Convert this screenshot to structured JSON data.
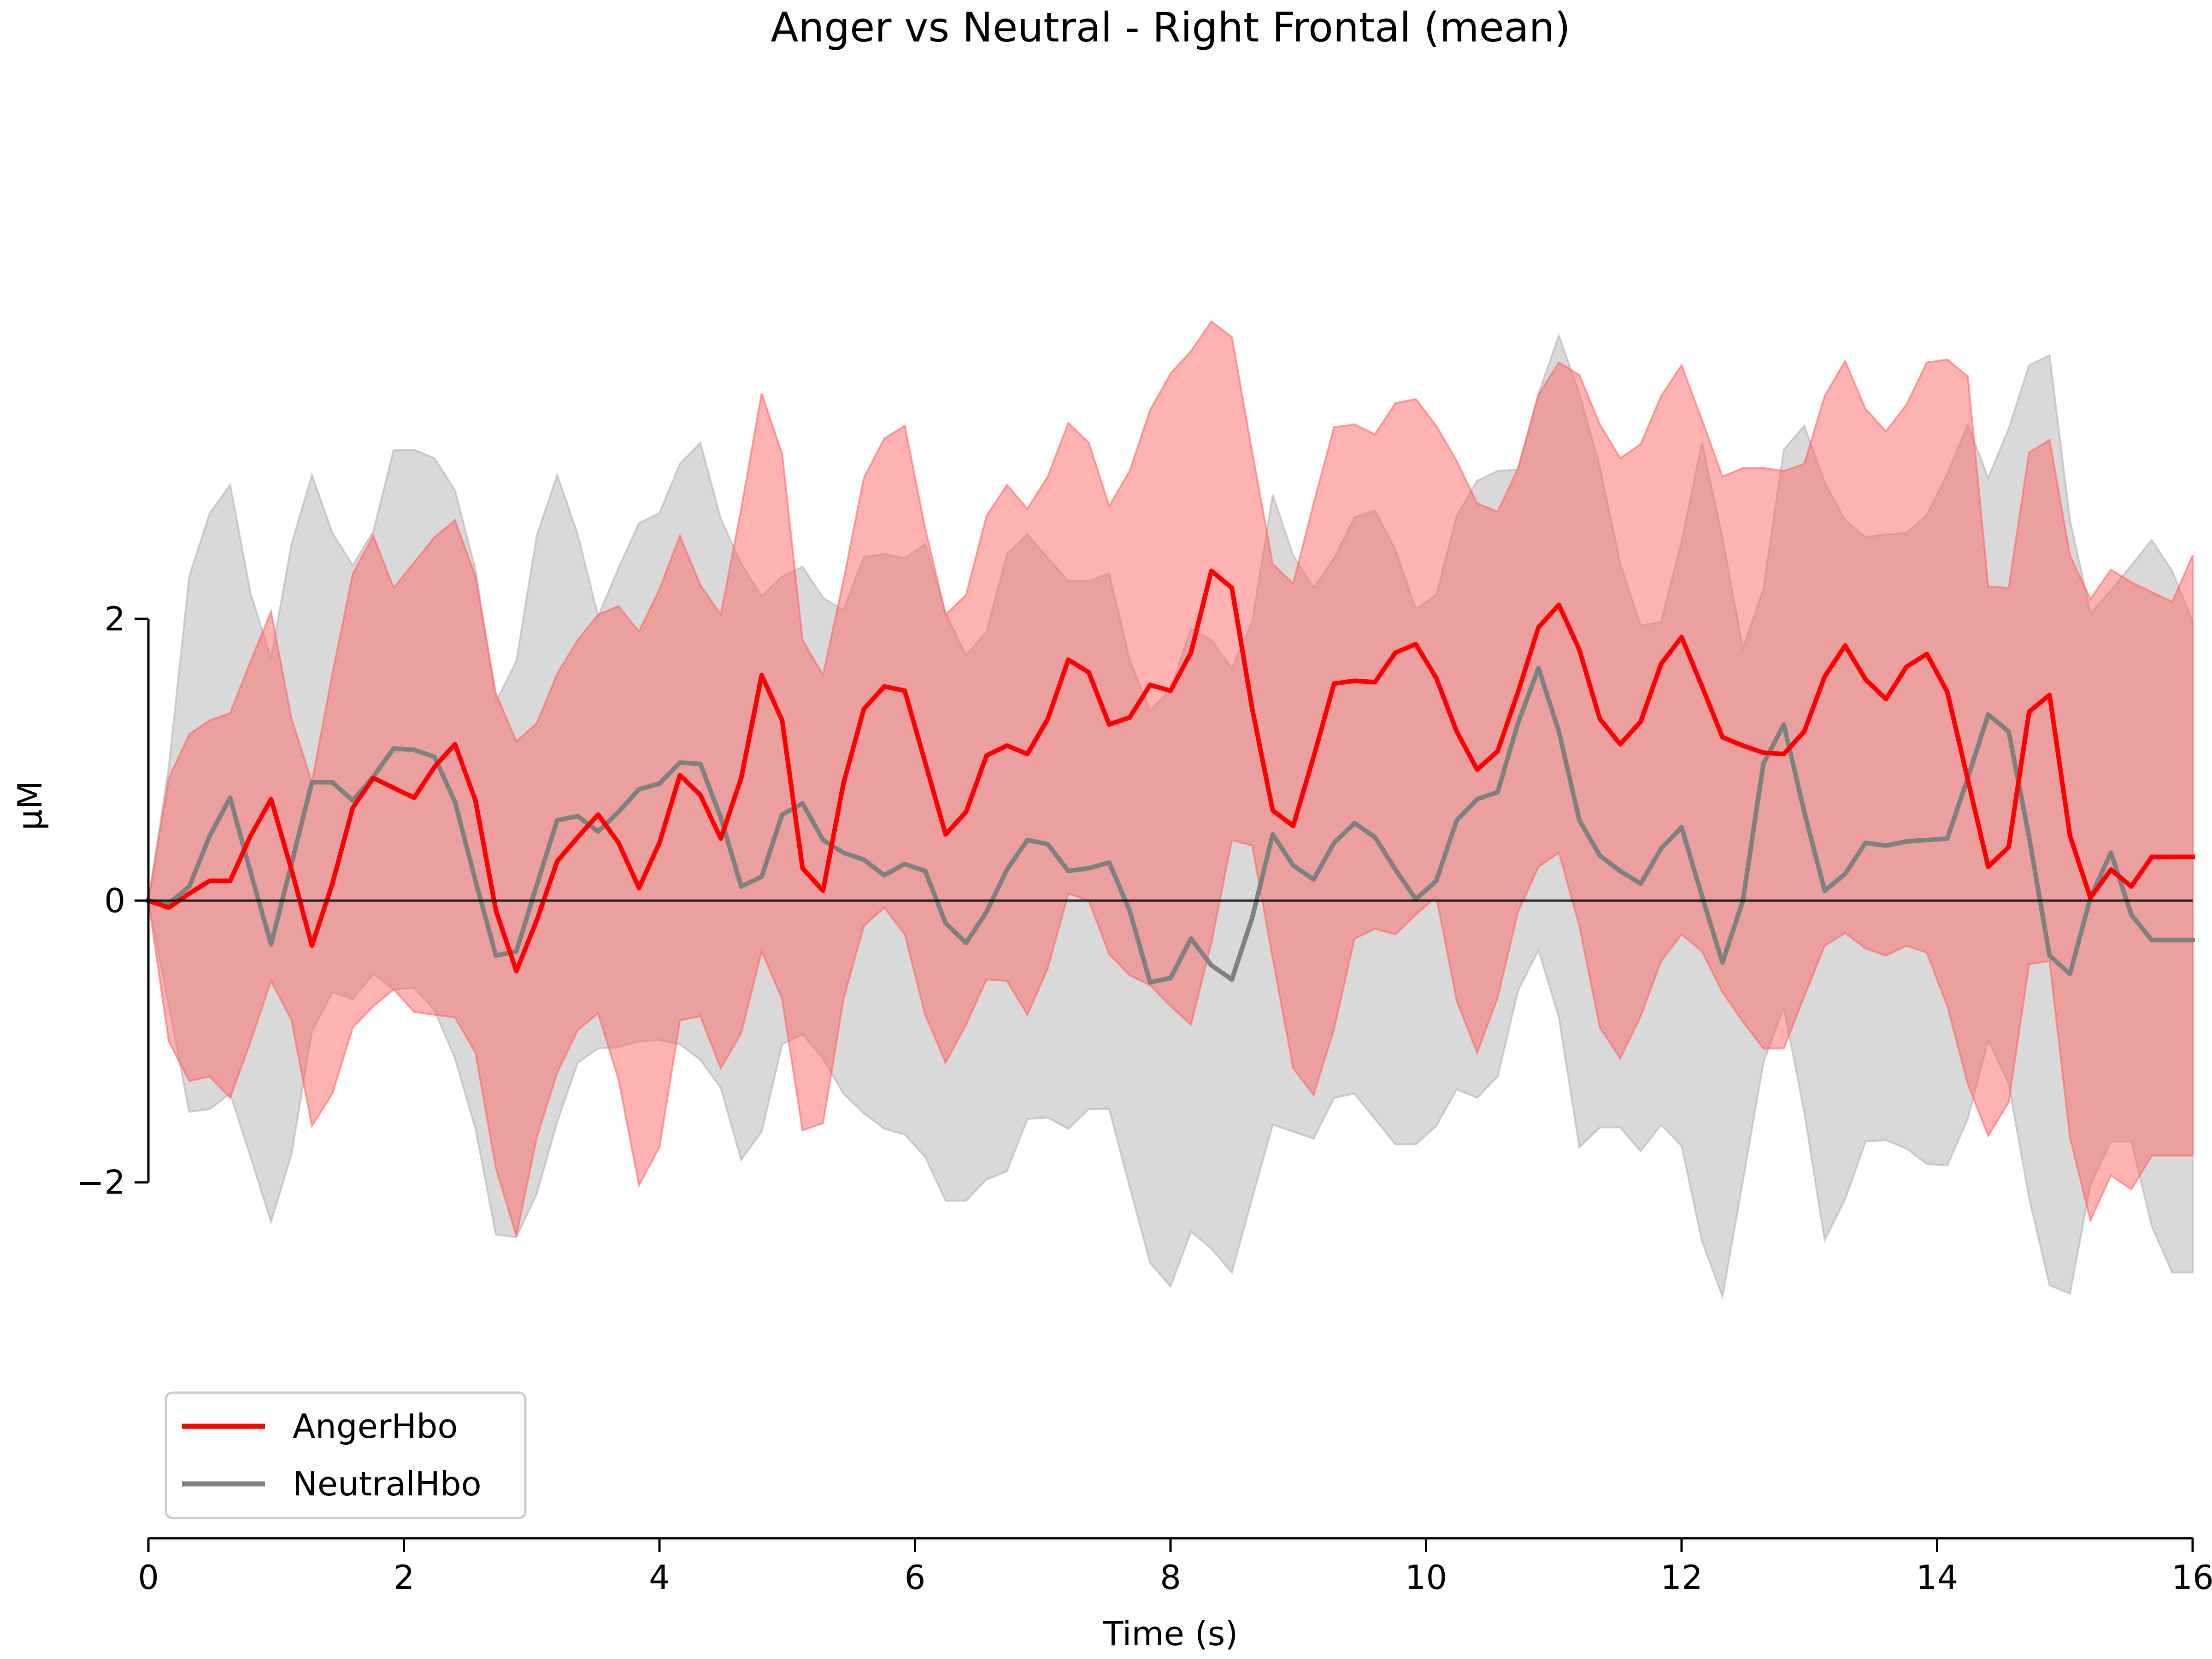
{
  "chart_data": {
    "type": "line",
    "title": "Anger vs Neutral - Right Frontal (mean)",
    "xlabel": "Time (s)",
    "ylabel": "µM",
    "xlim": [
      0,
      16
    ],
    "ylim": [
      -4.5,
      6.0
    ],
    "x_ticks": [
      "0",
      "2",
      "4",
      "6",
      "8",
      "10",
      "12",
      "14",
      "16"
    ],
    "y_ticks": [
      "−2",
      "0",
      "2"
    ],
    "zero_line": true,
    "grid": false,
    "legend_position": "bottom-left",
    "x": [
      0,
      0.16,
      0.32,
      0.48,
      0.64,
      0.8,
      0.96,
      1.12,
      1.28,
      1.44,
      1.6,
      1.76,
      1.92,
      2.08,
      2.24,
      2.4,
      2.56,
      2.72,
      2.88,
      3.04,
      3.2,
      3.36,
      3.52,
      3.68,
      3.84,
      4.0,
      4.16,
      4.32,
      4.48,
      4.64,
      4.8,
      4.96,
      5.12,
      5.28,
      5.44,
      5.6,
      5.76,
      5.92,
      6.08,
      6.24,
      6.4,
      6.56,
      6.72,
      6.88,
      7.04,
      7.2,
      7.36,
      7.52,
      7.68,
      7.84,
      8.0,
      8.16,
      8.32,
      8.48,
      8.64,
      8.8,
      8.96,
      9.12,
      9.28,
      9.44,
      9.6,
      9.76,
      9.92,
      10.08,
      10.24,
      10.4,
      10.56,
      10.72,
      10.88,
      11.04,
      11.2,
      11.36,
      11.52,
      11.68,
      11.84,
      12.0,
      12.16,
      12.32,
      12.48,
      12.64,
      12.8,
      12.96,
      13.12,
      13.28,
      13.44,
      13.6,
      13.76,
      13.92,
      14.08,
      14.24,
      14.4,
      14.56,
      14.72,
      14.88,
      15.04,
      15.2,
      15.36,
      15.52,
      15.68,
      15.84,
      16.0
    ],
    "series": [
      {
        "name": "AngerHbo",
        "color": "#ff0000",
        "band_color": "#ff6666",
        "mean": [
          0.0,
          -0.05,
          0.05,
          0.14,
          0.14,
          0.46,
          0.72,
          0.22,
          -0.32,
          0.12,
          0.66,
          0.87,
          0.8,
          0.73,
          0.95,
          1.11,
          0.71,
          -0.07,
          -0.5,
          -0.14,
          0.28,
          0.45,
          0.61,
          0.41,
          0.09,
          0.41,
          0.89,
          0.75,
          0.44,
          0.87,
          1.6,
          1.28,
          0.23,
          0.07,
          0.83,
          1.36,
          1.52,
          1.49,
          0.98,
          0.47,
          0.63,
          1.03,
          1.1,
          1.04,
          1.29,
          1.71,
          1.62,
          1.25,
          1.3,
          1.53,
          1.49,
          1.76,
          2.34,
          2.22,
          1.36,
          0.64,
          0.53,
          1.02,
          1.54,
          1.56,
          1.55,
          1.76,
          1.82,
          1.58,
          1.2,
          0.93,
          1.06,
          1.48,
          1.94,
          2.1,
          1.78,
          1.29,
          1.11,
          1.27,
          1.68,
          1.87,
          1.52,
          1.16,
          1.1,
          1.05,
          1.04,
          1.2,
          1.59,
          1.81,
          1.57,
          1.43,
          1.66,
          1.75,
          1.48,
          0.86,
          0.24,
          0.38,
          1.34,
          1.46,
          0.46,
          0.02,
          0.22,
          0.1,
          0.31,
          0.31,
          0.31
        ],
        "upper": [
          0.0,
          0.87,
          1.18,
          1.28,
          1.33,
          1.7,
          2.05,
          1.29,
          0.84,
          1.61,
          2.32,
          2.59,
          2.22,
          2.4,
          2.58,
          2.7,
          2.3,
          1.47,
          1.13,
          1.26,
          1.61,
          1.85,
          2.03,
          2.09,
          1.91,
          2.21,
          2.59,
          2.24,
          2.03,
          2.78,
          3.6,
          3.17,
          1.85,
          1.6,
          2.27,
          3.0,
          3.28,
          3.37,
          2.64,
          2.03,
          2.17,
          2.73,
          2.95,
          2.78,
          3.01,
          3.39,
          3.25,
          2.8,
          3.05,
          3.48,
          3.74,
          3.9,
          4.11,
          4.0,
          3.18,
          2.39,
          2.25,
          2.82,
          3.36,
          3.38,
          3.31,
          3.53,
          3.56,
          3.37,
          3.12,
          2.82,
          2.76,
          3.07,
          3.59,
          3.82,
          3.73,
          3.38,
          3.14,
          3.24,
          3.58,
          3.8,
          3.41,
          3.01,
          3.07,
          3.07,
          3.05,
          3.1,
          3.58,
          3.83,
          3.49,
          3.33,
          3.52,
          3.82,
          3.84,
          3.72,
          2.23,
          2.22,
          3.18,
          3.27,
          2.45,
          2.14,
          2.35,
          2.26,
          2.19,
          2.12,
          2.45
        ],
        "lower": [
          0.0,
          -1.0,
          -1.28,
          -1.25,
          -1.4,
          -1.0,
          -0.57,
          -0.85,
          -1.6,
          -1.37,
          -0.9,
          -0.75,
          -0.63,
          -0.79,
          -0.81,
          -0.83,
          -1.08,
          -1.9,
          -2.38,
          -1.68,
          -1.22,
          -0.92,
          -0.8,
          -1.27,
          -2.02,
          -1.75,
          -0.85,
          -0.82,
          -1.19,
          -0.94,
          -0.36,
          -0.7,
          -1.63,
          -1.58,
          -0.7,
          -0.18,
          -0.05,
          -0.24,
          -0.81,
          -1.15,
          -0.88,
          -0.56,
          -0.57,
          -0.81,
          -0.48,
          0.05,
          0.0,
          -0.38,
          -0.53,
          -0.6,
          -0.75,
          -0.88,
          -0.3,
          0.43,
          0.39,
          -0.41,
          -1.19,
          -1.38,
          -0.91,
          -0.27,
          -0.2,
          -0.24,
          -0.1,
          0.03,
          -0.71,
          -1.08,
          -0.69,
          -0.08,
          0.24,
          0.34,
          -0.18,
          -0.9,
          -1.12,
          -0.82,
          -0.43,
          -0.24,
          -0.36,
          -0.65,
          -0.86,
          -1.05,
          -1.05,
          -0.68,
          -0.32,
          -0.23,
          -0.34,
          -0.39,
          -0.32,
          -0.37,
          -0.75,
          -1.3,
          -1.67,
          -1.43,
          -0.45,
          -0.43,
          -1.68,
          -2.27,
          -1.95,
          -2.05,
          -1.81,
          -1.81,
          -1.81
        ]
      },
      {
        "name": "NeutralHbo",
        "color": "#808080",
        "band_color": "#b3b3b3",
        "mean": [
          0.0,
          -0.02,
          0.1,
          0.46,
          0.73,
          0.2,
          -0.31,
          0.26,
          0.84,
          0.84,
          0.71,
          0.88,
          1.08,
          1.07,
          1.02,
          0.7,
          0.14,
          -0.39,
          -0.36,
          0.11,
          0.57,
          0.6,
          0.49,
          0.63,
          0.79,
          0.83,
          0.98,
          0.97,
          0.59,
          0.1,
          0.17,
          0.61,
          0.69,
          0.43,
          0.34,
          0.29,
          0.18,
          0.26,
          0.21,
          -0.16,
          -0.3,
          -0.08,
          0.22,
          0.43,
          0.4,
          0.21,
          0.23,
          0.27,
          -0.07,
          -0.58,
          -0.55,
          -0.27,
          -0.46,
          -0.56,
          -0.12,
          0.47,
          0.25,
          0.15,
          0.41,
          0.55,
          0.45,
          0.22,
          0.01,
          0.14,
          0.57,
          0.72,
          0.77,
          1.26,
          1.65,
          1.2,
          0.57,
          0.32,
          0.21,
          0.12,
          0.37,
          0.52,
          0.03,
          -0.44,
          0.0,
          0.97,
          1.25,
          0.63,
          0.07,
          0.19,
          0.41,
          0.39,
          0.42,
          0.43,
          0.44,
          0.87,
          1.32,
          1.2,
          0.45,
          -0.39,
          -0.52,
          0.02,
          0.34,
          -0.1,
          -0.28,
          -0.28,
          -0.28
        ],
        "upper": [
          0.0,
          0.95,
          2.3,
          2.75,
          2.95,
          2.18,
          1.72,
          2.53,
          3.02,
          2.61,
          2.38,
          2.62,
          3.2,
          3.2,
          3.14,
          2.91,
          2.35,
          1.41,
          1.7,
          2.59,
          3.02,
          2.6,
          2.02,
          2.36,
          2.68,
          2.75,
          3.1,
          3.25,
          2.71,
          2.39,
          2.16,
          2.3,
          2.37,
          2.15,
          2.06,
          2.44,
          2.46,
          2.43,
          2.53,
          2.04,
          1.74,
          1.91,
          2.46,
          2.6,
          2.43,
          2.27,
          2.27,
          2.32,
          1.71,
          1.35,
          1.5,
          1.93,
          1.85,
          1.65,
          1.98,
          2.88,
          2.45,
          2.22,
          2.43,
          2.72,
          2.77,
          2.49,
          2.07,
          2.17,
          2.73,
          2.98,
          3.05,
          3.06,
          3.6,
          4.01,
          3.6,
          3.08,
          2.39,
          1.95,
          1.98,
          2.55,
          3.25,
          2.57,
          1.79,
          2.21,
          3.2,
          3.37,
          2.97,
          2.7,
          2.58,
          2.6,
          2.61,
          2.74,
          3.03,
          3.38,
          3.0,
          3.35,
          3.8,
          3.87,
          2.7,
          2.04,
          2.2,
          2.38,
          2.56,
          2.34,
          1.98
        ],
        "lower": [
          0.0,
          -0.75,
          -1.5,
          -1.48,
          -1.37,
          -1.82,
          -2.28,
          -1.8,
          -0.93,
          -0.65,
          -0.7,
          -0.52,
          -0.63,
          -0.62,
          -0.78,
          -1.12,
          -1.62,
          -2.37,
          -2.39,
          -2.08,
          -1.57,
          -1.15,
          -1.05,
          -1.04,
          -1.0,
          -0.99,
          -1.02,
          -1.13,
          -1.33,
          -1.84,
          -1.64,
          -1.02,
          -0.95,
          -1.12,
          -1.37,
          -1.51,
          -1.62,
          -1.66,
          -1.82,
          -2.13,
          -2.13,
          -1.98,
          -1.92,
          -1.55,
          -1.54,
          -1.62,
          -1.48,
          -1.48,
          -2.03,
          -2.57,
          -2.74,
          -2.35,
          -2.47,
          -2.64,
          -2.11,
          -1.59,
          -1.64,
          -1.69,
          -1.4,
          -1.37,
          -1.55,
          -1.73,
          -1.73,
          -1.6,
          -1.34,
          -1.4,
          -1.25,
          -0.64,
          -0.35,
          -0.83,
          -1.75,
          -1.61,
          -1.61,
          -1.78,
          -1.59,
          -1.74,
          -2.42,
          -2.81,
          -1.99,
          -1.15,
          -0.76,
          -1.5,
          -2.41,
          -2.12,
          -1.71,
          -1.7,
          -1.76,
          -1.87,
          -1.88,
          -1.55,
          -0.99,
          -1.3,
          -2.11,
          -2.73,
          -2.79,
          -2.02,
          -1.71,
          -1.71,
          -2.31,
          -2.64,
          -2.64
        ]
      }
    ]
  }
}
